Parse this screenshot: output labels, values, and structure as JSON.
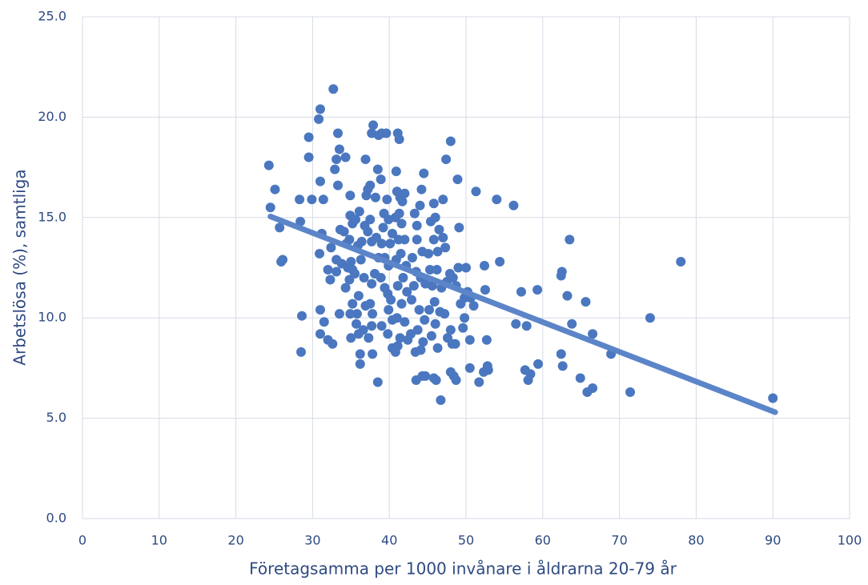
{
  "chart_data": {
    "type": "scatter",
    "xlabel": "Företagsamma per 1000 invånare i åldrarna 20-79 år",
    "ylabel": "Arbetslösa  (%), samtliga",
    "xlim": [
      0,
      100
    ],
    "ylim": [
      0,
      25
    ],
    "xticks": [
      0,
      10,
      20,
      30,
      40,
      50,
      60,
      70,
      80,
      90,
      100
    ],
    "yticks": [
      {
        "value": 0,
        "label": "0.0"
      },
      {
        "value": 5,
        "label": "5.0"
      },
      {
        "value": 10,
        "label": "10.0"
      },
      {
        "value": 15,
        "label": "15.0"
      },
      {
        "value": 20,
        "label": "20.0"
      },
      {
        "value": 25,
        "label": "25.0"
      }
    ],
    "grid": true,
    "series": [
      {
        "color": "#4a77bf",
        "x": [
          24.3,
          25.1,
          24.5,
          25.7,
          25.9,
          26.1,
          28.3,
          28.4,
          28.6,
          28.5,
          29.5,
          29.5,
          29.9,
          31.0,
          30.8,
          31.4,
          31.0,
          31.2,
          30.9,
          32.0,
          31.0,
          31.5,
          31.0,
          32.0,
          32.6,
          32.7,
          33.3,
          33.1,
          32.9,
          33.3,
          33.5,
          34.3,
          32.4,
          33.1,
          32.3,
          33.5,
          34.1,
          34.8,
          34.9,
          35.2,
          34.9,
          35.0,
          35.2,
          34.3,
          35.2,
          34.9,
          35.7,
          36.0,
          36.2,
          36.2,
          90.0,
          78.0,
          74.0,
          71.4,
          68.9,
          66.5,
          66.5,
          65.6,
          65.8,
          64.9,
          63.8,
          63.5,
          63.2,
          62.5,
          62.4,
          62.4,
          62.6,
          59.4,
          59.3,
          58.1,
          58.4,
          57.7,
          57.9,
          56.5,
          57.2,
          56.2,
          54.0,
          54.4,
          51.3,
          52.4,
          52.5,
          52.7,
          52.9,
          52.3,
          52.8,
          51.7,
          50.5,
          50.5,
          51.0,
          50.2,
          50.6,
          49.8,
          50.0,
          49.1,
          48.9,
          48.0,
          47.4,
          47.0,
          49.6,
          49.8,
          48.7,
          48.4,
          46.7,
          48.0,
          46.1,
          44.3,
          43.5,
          36.9,
          37.2,
          37.0,
          37.5,
          37.7,
          37.9,
          38.5,
          38.9,
          38.2,
          37.5,
          37.2,
          37.7,
          38.3,
          38.6,
          38.1,
          37.7,
          37.5,
          37.8,
          37.7,
          37.3,
          37.8,
          38.5,
          39.0,
          39.6,
          38.6,
          39.7,
          39.3,
          39.9,
          39.2,
          39.0,
          39.4,
          39.9,
          38.9,
          39.4,
          39.8,
          40.2,
          39.9,
          40.4,
          39.0,
          39.8,
          40.4,
          40.8,
          40.1,
          40.4,
          41.1,
          41.3,
          40.9,
          41.0,
          41.4,
          42.0,
          41.7,
          41.3,
          40.8,
          41.6,
          41.2,
          42.0,
          41.5,
          40.9,
          42.2,
          41.8,
          41.1,
          42.3,
          41.6,
          41.0,
          42.0,
          41.4,
          42.4,
          41.1,
          42.8,
          43.3,
          43.6,
          44.2,
          44.5,
          44.0,
          43.6,
          44.3,
          43.0,
          43.5,
          44.1,
          43.2,
          44.7,
          42.9,
          43.9,
          44.6,
          43.7,
          44.4,
          44.1,
          43.4,
          44.7,
          45.1,
          45.4,
          46.0,
          45.8,
          46.5,
          45.8,
          46.3,
          45.3,
          46.2,
          45.6,
          46.8,
          45.9,
          45.2,
          46.6,
          46.0,
          45.5,
          46.3,
          45.8,
          47.0,
          47.3,
          47.9,
          47.5,
          48.3,
          47.2,
          48.0,
          47.6,
          48.6,
          49.0,
          48.7,
          49.3,
          48.2,
          33.6,
          34.4,
          35.6,
          36.1,
          35.9,
          36.3,
          35.5,
          36.7,
          34.8,
          36.0,
          36.9,
          35.8,
          36.6,
          35.0,
          36.4,
          36.8,
          33.1,
          33.8,
          34.6
        ],
        "values": [
          17.6,
          16.4,
          15.5,
          14.5,
          12.8,
          12.9,
          15.9,
          14.8,
          10.1,
          8.3,
          19.0,
          18.0,
          15.9,
          20.4,
          19.9,
          15.9,
          16.8,
          14.2,
          13.2,
          12.4,
          10.4,
          9.8,
          9.2,
          8.9,
          8.7,
          21.4,
          19.2,
          17.9,
          17.4,
          16.6,
          18.4,
          18.0,
          13.5,
          12.9,
          11.9,
          10.2,
          14.3,
          13.9,
          15.1,
          14.7,
          16.1,
          12.8,
          12.4,
          11.5,
          10.7,
          10.2,
          9.7,
          9.2,
          8.2,
          7.7,
          6.0,
          12.8,
          10.0,
          6.3,
          8.2,
          9.2,
          6.5,
          10.8,
          6.3,
          7.0,
          9.7,
          13.9,
          11.1,
          12.3,
          12.1,
          8.2,
          7.6,
          7.7,
          11.4,
          6.9,
          7.2,
          7.4,
          9.6,
          9.7,
          11.3,
          15.6,
          15.9,
          12.8,
          16.3,
          12.6,
          11.4,
          8.9,
          7.4,
          7.3,
          7.6,
          6.8,
          7.5,
          8.9,
          10.6,
          11.3,
          11.0,
          11.0,
          12.5,
          14.5,
          16.9,
          18.8,
          17.9,
          15.9,
          9.5,
          10.0,
          6.9,
          7.1,
          5.9,
          7.3,
          6.9,
          7.1,
          6.9,
          17.9,
          16.4,
          16.1,
          16.6,
          19.2,
          19.6,
          17.4,
          16.9,
          16.0,
          14.9,
          14.3,
          13.8,
          14.0,
          13.0,
          12.2,
          11.7,
          10.7,
          10.2,
          9.6,
          9.0,
          8.2,
          6.8,
          19.2,
          19.2,
          19.1,
          15.9,
          15.2,
          14.9,
          14.5,
          13.7,
          13.0,
          12.6,
          12.0,
          11.5,
          11.2,
          10.9,
          10.4,
          9.9,
          9.6,
          9.2,
          8.5,
          8.3,
          13.7,
          14.2,
          19.2,
          18.9,
          17.3,
          16.3,
          16.0,
          16.2,
          15.8,
          15.2,
          15.0,
          14.7,
          13.9,
          13.9,
          13.2,
          12.9,
          12.6,
          12.0,
          11.6,
          11.3,
          10.7,
          10.0,
          9.8,
          9.0,
          8.9,
          8.6,
          9.2,
          15.2,
          14.6,
          16.4,
          17.2,
          15.6,
          13.9,
          13.3,
          13.0,
          12.3,
          12.0,
          11.6,
          11.7,
          10.9,
          10.4,
          9.9,
          9.4,
          8.8,
          8.4,
          8.3,
          7.1,
          13.2,
          14.8,
          15.0,
          15.7,
          14.4,
          13.9,
          13.3,
          12.4,
          12.4,
          11.6,
          11.5,
          10.8,
          10.4,
          10.3,
          9.7,
          9.1,
          8.5,
          7.0,
          14.0,
          13.5,
          12.2,
          11.8,
          12.0,
          10.2,
          9.4,
          9.0,
          8.7,
          12.5,
          11.6,
          10.7,
          8.7,
          14.4,
          13.7,
          14.9,
          15.3,
          13.6,
          12.9,
          12.2,
          12.0,
          11.9,
          11.1,
          10.6,
          10.2,
          9.4,
          9.0,
          13.8,
          14.6,
          12.3,
          12.7,
          12.5
        ]
      }
    ],
    "trendline": {
      "color": "#5b85c8",
      "x": [
        24.5,
        90.3
      ],
      "y": [
        15.05,
        5.3
      ]
    }
  }
}
